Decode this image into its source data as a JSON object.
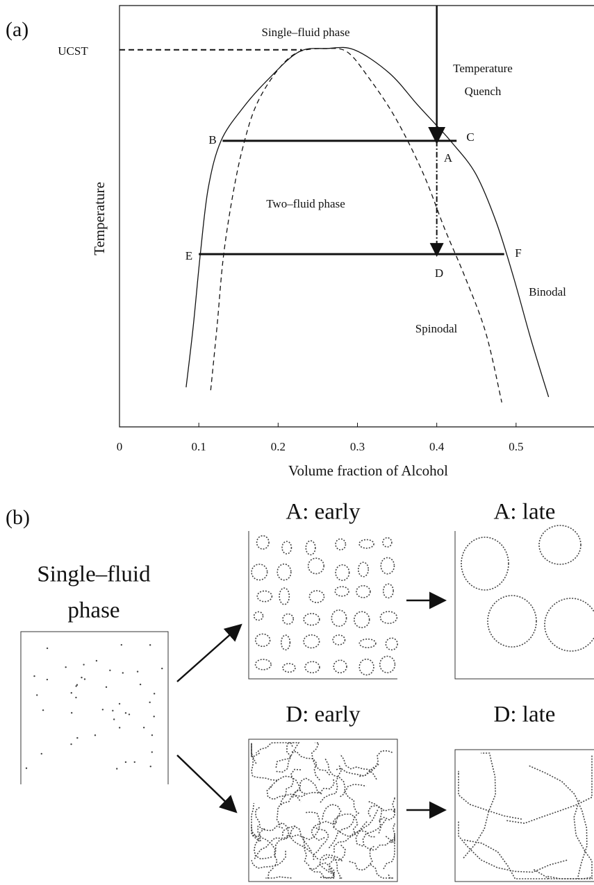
{
  "chart_data": {
    "type": "line",
    "panel_label": "(a)",
    "x_label": "Volume fraction of Alcohol",
    "y_label": "Temperature",
    "xlim": [
      0,
      0.6
    ],
    "ylim": [
      0,
      1
    ],
    "xticks": [
      0,
      0.1,
      0.2,
      0.3,
      0.4,
      0.5
    ],
    "region_labels": [
      "Single–fluid phase",
      "Two–fluid phase"
    ],
    "series": [
      {
        "name": "Binodal",
        "color": "#111111",
        "dash": false,
        "x": [
          0.084,
          0.093,
          0.102,
          0.112,
          0.128,
          0.156,
          0.187,
          0.226,
          0.261,
          0.296,
          0.34,
          0.375,
          0.399,
          0.419,
          0.449,
          0.475,
          0.497,
          0.519,
          0.541
        ],
        "values": [
          0.094,
          0.239,
          0.412,
          0.568,
          0.679,
          0.758,
          0.824,
          0.89,
          0.898,
          0.895,
          0.84,
          0.766,
          0.717,
          0.675,
          0.601,
          0.486,
          0.354,
          0.206,
          0.071
        ]
      },
      {
        "name": "Spinodal",
        "color": "#111111",
        "dash": true,
        "x": [
          0.115,
          0.123,
          0.131,
          0.143,
          0.156,
          0.173,
          0.2,
          0.226,
          0.261,
          0.287,
          0.313,
          0.348,
          0.383,
          0.41,
          0.436,
          0.462,
          0.482
        ],
        "values": [
          0.087,
          0.239,
          0.404,
          0.552,
          0.667,
          0.766,
          0.848,
          0.89,
          0.898,
          0.89,
          0.832,
          0.733,
          0.601,
          0.47,
          0.354,
          0.222,
          0.058
        ]
      }
    ],
    "ucst": {
      "label": "UCST",
      "y": 0.895,
      "x_end": 0.23
    },
    "tie_lines": [
      {
        "labels": [
          "B",
          "C"
        ],
        "y": 0.679,
        "x": [
          0.13,
          0.425
        ]
      },
      {
        "labels": [
          "E",
          "F"
        ],
        "y": 0.41,
        "x": [
          0.1,
          0.485
        ]
      }
    ],
    "quench": {
      "label": [
        "Temperature",
        "Quench"
      ],
      "x": 0.4,
      "y": [
        1,
        0.679,
        0.41
      ],
      "points": [
        "A",
        "D"
      ]
    }
  },
  "panel_b": {
    "panel_label": "(b)",
    "initial": [
      "Single–fluid",
      "phase"
    ],
    "states": [
      "A: early",
      "A: late",
      "D: early",
      "D: late"
    ]
  }
}
